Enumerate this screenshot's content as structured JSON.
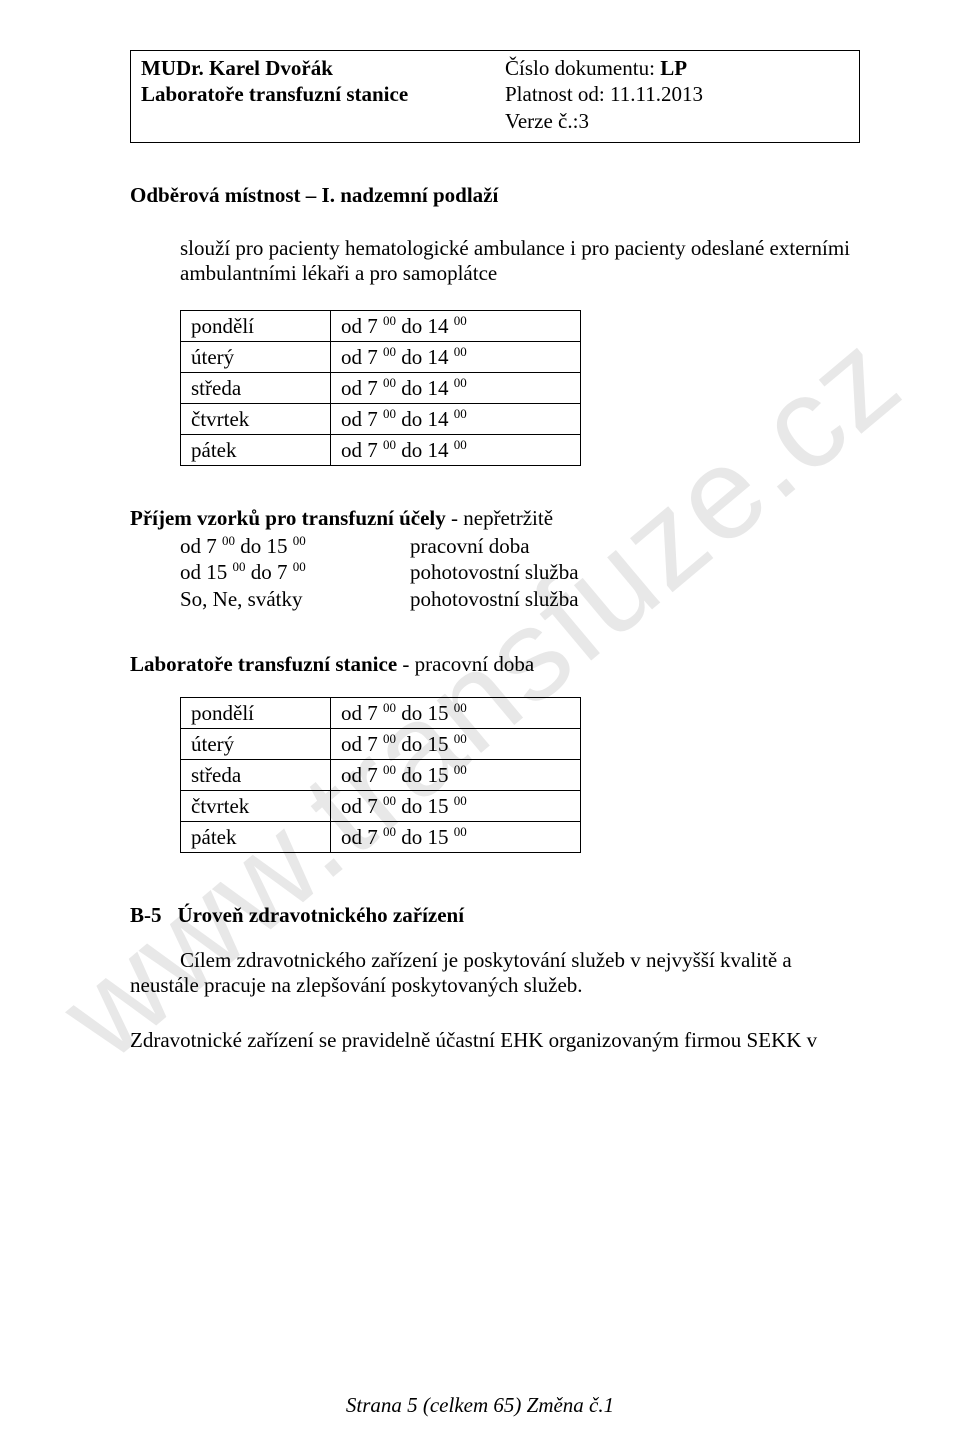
{
  "watermark": "www.transfuze.cz",
  "header": {
    "left_line1_label": "MUDr. ",
    "left_line1_name": "Karel Dvořák",
    "left_line2": "Laboratoře transfuzní stanice",
    "right_line1_label": "Číslo dokumentu:  ",
    "right_line1_value": "LP",
    "right_line2": "Platnost od: 11.11.2013",
    "right_line3": "Verze č.:3"
  },
  "section1": {
    "title": "Odběrová místnost – I. nadzemní podlaží",
    "intro": "slouží  pro pacienty hematologické ambulance i pro pacienty odeslané externími ambulantními lékaři a pro samoplátce",
    "days": [
      "pondělí",
      "úterý",
      "středa",
      "čtvrtek",
      "pátek"
    ],
    "time_prefix": "od   7 ",
    "time_sup1": "00",
    "time_mid": "  do  14 ",
    "time_sup2": "00"
  },
  "section2": {
    "title": "Příjem vzorků pro transfuzní účely",
    "title_suffix": " - nepřetržitě",
    "rows": [
      {
        "c1a": "od    7 ",
        "c1s1": "00",
        "c1b": "  do  15 ",
        "c1s2": "00",
        "c2": "pracovní doba"
      },
      {
        "c1a": "od  15 ",
        "c1s1": "00",
        "c1b": "  do   7  ",
        "c1s2": "00",
        "c2": "pohotovostní služba"
      },
      {
        "c1a": "So, Ne, svátky",
        "c1s1": "",
        "c1b": "",
        "c1s2": "",
        "c2": "pohotovostní služba"
      }
    ]
  },
  "section3": {
    "title": "Laboratoře  transfuzní stanice ",
    "title_suffix": "  - pracovní doba",
    "days": [
      "pondělí",
      "úterý",
      "středa",
      "čtvrtek",
      "pátek"
    ],
    "time_prefix": "od   7 ",
    "time_sup1": "00",
    "time_mid": "  do  15 ",
    "time_sup2": "00"
  },
  "section4": {
    "code": "B-5",
    "title": "Úroveň  zdravotnického zařízení",
    "para1": "Cílem zdravotnického zařízení je poskytování služeb v nejvyšší kvalitě a  neustále pracuje na zlepšování poskytovaných služeb.",
    "para2": "Zdravotnické zařízení se pravidelně účastní EHK organizovaným firmou  SEKK v"
  },
  "footer": "Strana 5 (celkem 65) Změna č.1"
}
